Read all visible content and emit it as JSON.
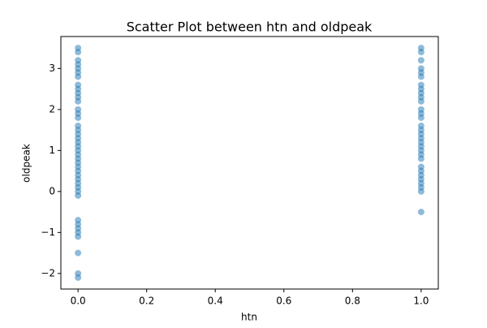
{
  "chart_data": {
    "type": "scatter",
    "title": "Scatter Plot between htn and oldpeak",
    "x_label": "htn",
    "y_label": "oldpeak",
    "color": "#1f77b4",
    "x": [
      0,
      0,
      0,
      0,
      0,
      0,
      0,
      0,
      0,
      0,
      0,
      0,
      0,
      0,
      0,
      0,
      0,
      0,
      0,
      0,
      0,
      0,
      0,
      0,
      0,
      0,
      0,
      0,
      0,
      0,
      0,
      0,
      0,
      0,
      0,
      0,
      0,
      0,
      0,
      0,
      0,
      1,
      1,
      1,
      1,
      1,
      1,
      1,
      1,
      1,
      1,
      1,
      1,
      1,
      1,
      1,
      1,
      1,
      1,
      1,
      1,
      1,
      1,
      1,
      1,
      1,
      1,
      1,
      1,
      1,
      1,
      1
    ],
    "values": [
      3.5,
      3.4,
      3.2,
      3.1,
      3.0,
      2.9,
      2.8,
      2.6,
      2.5,
      2.4,
      2.3,
      2.2,
      2.0,
      1.9,
      1.8,
      1.6,
      1.5,
      1.4,
      1.3,
      1.2,
      1.1,
      1.0,
      0.9,
      0.8,
      0.7,
      0.6,
      0.5,
      0.4,
      0.3,
      0.2,
      0.1,
      0.0,
      -0.1,
      -0.7,
      -0.8,
      -0.9,
      -1.0,
      -1.1,
      -1.5,
      -2.0,
      -2.1,
      3.5,
      3.4,
      3.2,
      3.0,
      2.9,
      2.8,
      2.6,
      2.5,
      2.4,
      2.3,
      2.2,
      2.0,
      1.9,
      1.8,
      1.6,
      1.5,
      1.4,
      1.3,
      1.2,
      1.1,
      1.0,
      0.9,
      0.8,
      0.6,
      0.5,
      0.4,
      0.3,
      0.2,
      0.1,
      0.0,
      -0.5
    ],
    "xlim": [
      -0.05,
      1.05
    ],
    "xticks": [
      {
        "value": 0,
        "label": "0.0"
      },
      {
        "value": 0.2,
        "label": "0.2"
      },
      {
        "value": 0.4,
        "label": "0.4"
      },
      {
        "value": 0.6,
        "label": "0.6"
      },
      {
        "value": 0.8,
        "label": "0.8"
      },
      {
        "value": 1,
        "label": "1.0"
      }
    ],
    "ylim": [
      -2.38,
      3.78
    ],
    "yticks": [
      {
        "value": -2,
        "label": "−2"
      },
      {
        "value": -1,
        "label": "−1"
      },
      0,
      1,
      2,
      3
    ],
    "grid": false
  }
}
